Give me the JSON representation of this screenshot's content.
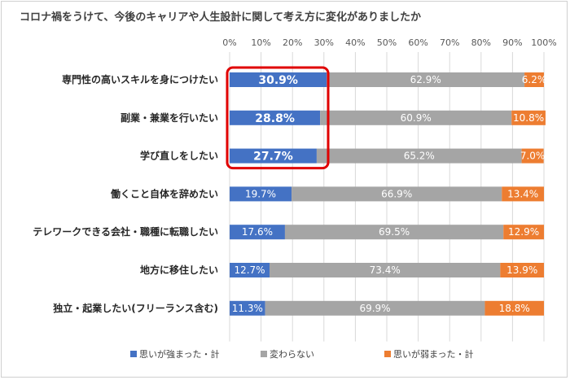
{
  "chart_data": {
    "type": "bar",
    "orientation": "horizontal",
    "stacked": true,
    "percent": true,
    "title": "コロナ禍をうけて、今後のキャリアや人生設計に関して考え方に変化がありましたか",
    "xlim": [
      0,
      100
    ],
    "x_ticks": [
      "0%",
      "10%",
      "20%",
      "30%",
      "40%",
      "50%",
      "60%",
      "70%",
      "80%",
      "90%",
      "100%"
    ],
    "grid": true,
    "legend_position": "bottom",
    "categories": [
      "専門性の高いスキルを身につけたい",
      "副業・兼業を行いたい",
      "学び直しをしたい",
      "働くこと自体を辞めたい",
      "テレワークできる会社・職種に転職したい",
      "地方に移住したい",
      "独立・起業したい(フリーランス含む)"
    ],
    "series": [
      {
        "name": "思いが強まった・計",
        "color": "#4472C4",
        "values": [
          30.9,
          28.8,
          27.7,
          19.7,
          17.6,
          12.7,
          11.3
        ],
        "labels": [
          "30.9%",
          "28.8%",
          "27.7%",
          "19.7%",
          "17.6%",
          "12.7%",
          "11.3%"
        ]
      },
      {
        "name": "変わらない",
        "color": "#A5A5A5",
        "values": [
          62.9,
          60.9,
          65.2,
          66.9,
          69.5,
          73.4,
          69.9
        ],
        "labels": [
          "62.9%",
          "60.9%",
          "65.2%",
          "66.9%",
          "69.5%",
          "73.4%",
          "69.9%"
        ]
      },
      {
        "name": "思いが弱まった・計",
        "color": "#ED7D31",
        "values": [
          6.2,
          10.8,
          7.0,
          13.4,
          12.9,
          13.9,
          18.8
        ],
        "labels": [
          "6.2%",
          "10.8%",
          "7.0%",
          "13.4%",
          "12.9%",
          "13.9%",
          "18.8%"
        ]
      }
    ],
    "highlight": {
      "categories": [
        0,
        1,
        2
      ],
      "series": 0,
      "color": "#E00000"
    }
  }
}
